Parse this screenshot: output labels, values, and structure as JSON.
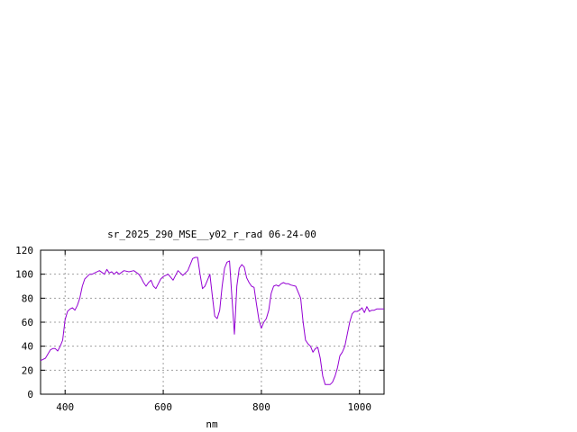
{
  "chart_data": {
    "type": "line",
    "title": "sr_2025_290_MSE__y02_r_rad 06-24-00",
    "xlabel": "nm",
    "ylabel": "",
    "xlim": [
      350,
      1050
    ],
    "ylim": [
      0,
      120
    ],
    "xticks": [
      400,
      600,
      800,
      1000
    ],
    "yticks": [
      0,
      20,
      40,
      60,
      80,
      100,
      120
    ],
    "grid": true,
    "series": [
      {
        "color": "#9400d3",
        "x": [
          350,
          360,
          370,
          375,
          380,
          385,
          390,
          395,
          400,
          405,
          410,
          415,
          420,
          425,
          430,
          435,
          440,
          445,
          450,
          455,
          460,
          470,
          480,
          485,
          490,
          495,
          500,
          505,
          510,
          520,
          530,
          540,
          550,
          555,
          560,
          565,
          570,
          575,
          580,
          585,
          590,
          595,
          600,
          610,
          620,
          630,
          635,
          640,
          650,
          660,
          665,
          670,
          675,
          680,
          685,
          690,
          695,
          700,
          705,
          710,
          715,
          720,
          725,
          730,
          735,
          740,
          745,
          750,
          755,
          760,
          765,
          770,
          775,
          780,
          785,
          790,
          795,
          800,
          805,
          810,
          815,
          820,
          825,
          830,
          835,
          840,
          845,
          850,
          855,
          860,
          870,
          880,
          885,
          890,
          895,
          900,
          905,
          910,
          915,
          920,
          925,
          930,
          940,
          945,
          950,
          955,
          960,
          965,
          970,
          975,
          980,
          985,
          990,
          995,
          1000,
          1005,
          1010,
          1015,
          1020,
          1025,
          1030,
          1035,
          1040,
          1045,
          1050
        ],
        "y": [
          28,
          30,
          37,
          38,
          38,
          36,
          40,
          45,
          62,
          69,
          71,
          72,
          70,
          74,
          80,
          90,
          96,
          98,
          100,
          100,
          101,
          103,
          100,
          104,
          101,
          102,
          100,
          102,
          100,
          103,
          102,
          103,
          100,
          97,
          93,
          90,
          93,
          95,
          90,
          88,
          92,
          96,
          98,
          100,
          95,
          103,
          101,
          99,
          103,
          113,
          114,
          114,
          100,
          88,
          90,
          95,
          100,
          82,
          65,
          63,
          70,
          90,
          105,
          110,
          111,
          80,
          50,
          90,
          105,
          108,
          106,
          97,
          93,
          90,
          89,
          75,
          62,
          55,
          60,
          63,
          70,
          84,
          90,
          91,
          90,
          92,
          93,
          92,
          92,
          91,
          90,
          80,
          60,
          45,
          42,
          40,
          35,
          38,
          39,
          30,
          15,
          8,
          8,
          10,
          15,
          22,
          32,
          35,
          40,
          50,
          60,
          67,
          69,
          69,
          70,
          72,
          68,
          73,
          69,
          70,
          70,
          71,
          71,
          71,
          71
        ]
      }
    ]
  }
}
